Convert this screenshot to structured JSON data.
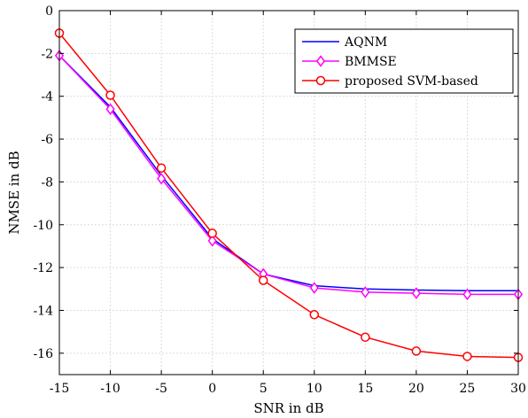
{
  "chart_data": {
    "type": "line",
    "title": "",
    "xlabel": "SNR in dB",
    "ylabel": "NMSE in dB",
    "xlim": [
      -15,
      30
    ],
    "ylim": [
      -17,
      0
    ],
    "xticks": [
      -15,
      -10,
      -5,
      0,
      5,
      10,
      15,
      20,
      25,
      30
    ],
    "yticks": [
      0,
      -2,
      -4,
      -6,
      -8,
      -10,
      -12,
      -14,
      -16
    ],
    "grid": true,
    "legend_position": "top-right",
    "x": [
      -15,
      -10,
      -5,
      0,
      5,
      10,
      15,
      20,
      25,
      30
    ],
    "series": [
      {
        "name": "AQNM",
        "color": "#0000ff",
        "marker": "none",
        "values": [
          -2.1,
          -4.5,
          -7.7,
          -10.65,
          -12.3,
          -12.85,
          -13.0,
          -13.05,
          -13.08,
          -13.08
        ]
      },
      {
        "name": "BMMSE",
        "color": "#ff00ff",
        "marker": "diamond",
        "values": [
          -2.1,
          -4.6,
          -7.85,
          -10.75,
          -12.3,
          -12.95,
          -13.15,
          -13.2,
          -13.25,
          -13.25
        ]
      },
      {
        "name": "proposed SVM-based",
        "color": "#ff0000",
        "marker": "circle",
        "values": [
          -1.05,
          -3.95,
          -7.35,
          -10.4,
          -12.6,
          -14.2,
          -15.25,
          -15.9,
          -16.15,
          -16.2
        ]
      }
    ]
  }
}
